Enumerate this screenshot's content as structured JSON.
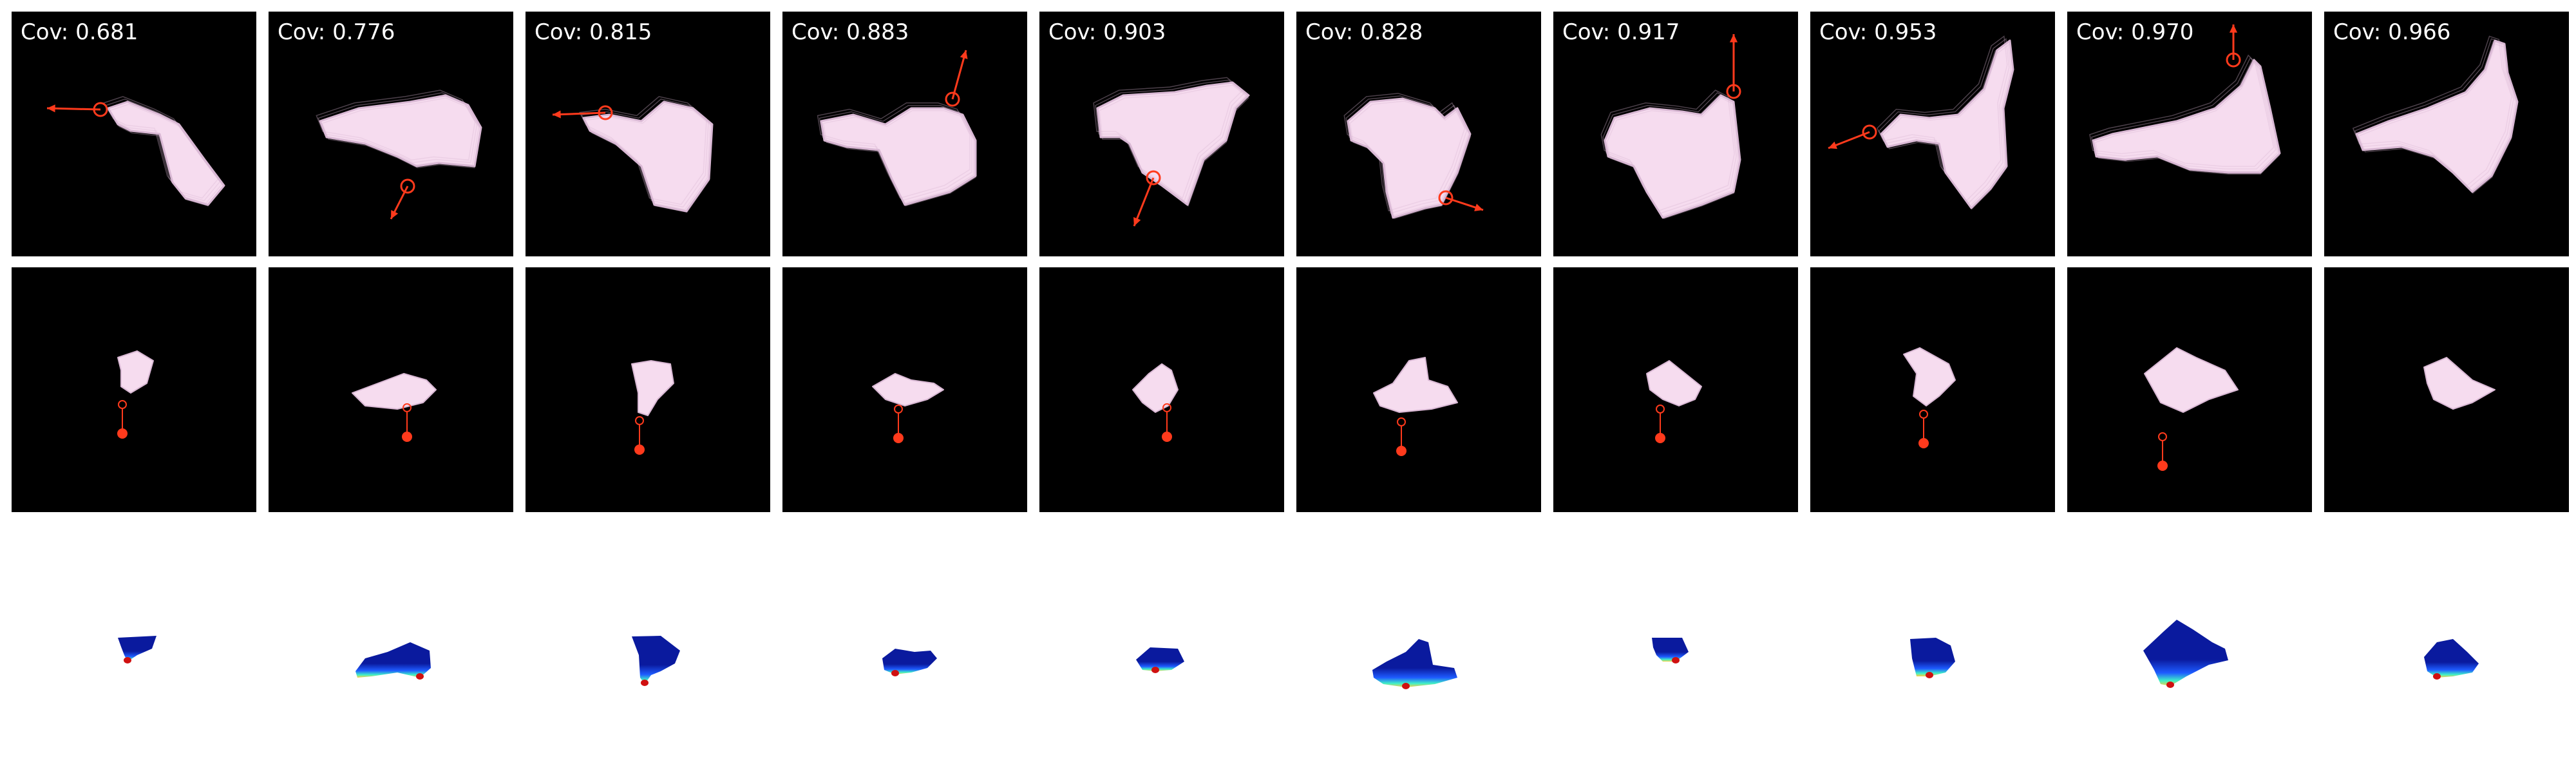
{
  "columns": [
    {
      "coverage": "Cov: 0.681"
    },
    {
      "coverage": "Cov: 0.776"
    },
    {
      "coverage": "Cov: 0.815"
    },
    {
      "coverage": "Cov: 0.883"
    },
    {
      "coverage": "Cov: 0.903"
    },
    {
      "coverage": "Cov: 0.828"
    },
    {
      "coverage": "Cov: 0.917"
    },
    {
      "coverage": "Cov: 0.953"
    },
    {
      "coverage": "Cov: 0.970"
    },
    {
      "coverage": "Cov: 0.966"
    }
  ],
  "rows": [
    "rendered-view",
    "camera-view",
    "depth-heatmap"
  ],
  "colors": {
    "tile_background": "#000000",
    "page_background": "#ffffff",
    "cloth": "#f6dcef",
    "cloth_shade": "#d9b8d4",
    "action": "#ff3a1c",
    "heatmap_low": "#0a1a9e",
    "heatmap_mid": "#1e5bff",
    "heatmap_high": "#3ff0c8",
    "heatmap_hot": "#d01010"
  }
}
